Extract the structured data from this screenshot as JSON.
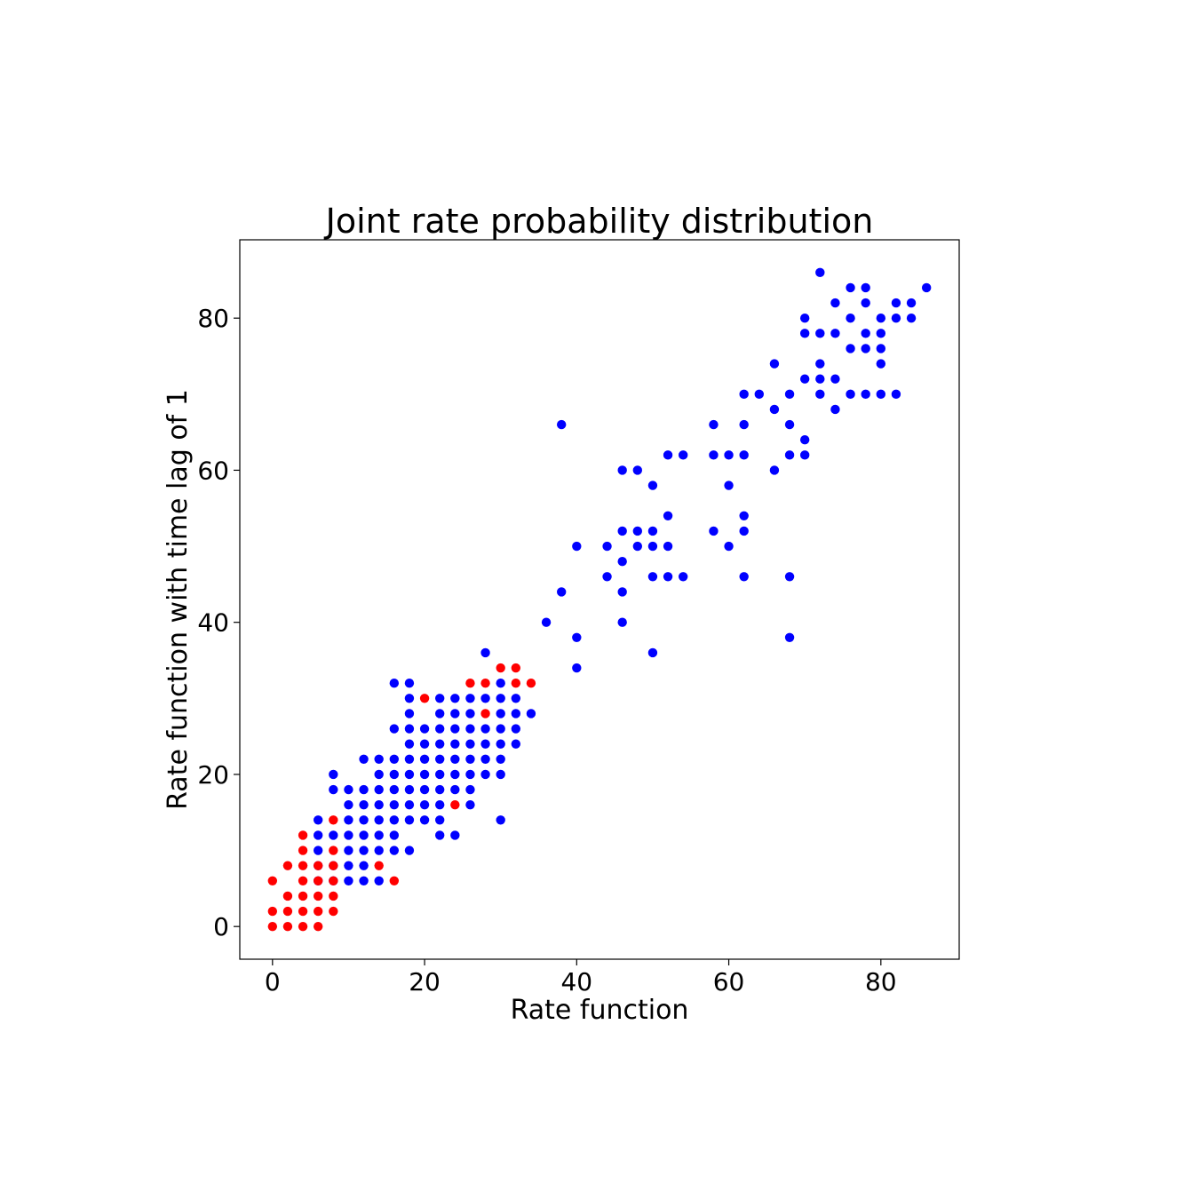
{
  "chart_data": {
    "type": "scatter",
    "title": "Joint rate probability distribution",
    "xlabel": "Rate function",
    "ylabel": "Rate function with time lag of 1",
    "xlim": [
      -4.3,
      90.3
    ],
    "ylim": [
      -4.3,
      90.3
    ],
    "xticks": [
      0,
      20,
      40,
      60,
      80
    ],
    "yticks": [
      0,
      20,
      40,
      60,
      80
    ],
    "grid": false,
    "series": [
      {
        "color": "#0000ff",
        "points": [
          [
            6,
            14
          ],
          [
            6,
            12
          ],
          [
            6,
            10
          ],
          [
            6,
            8
          ],
          [
            6,
            6
          ],
          [
            8,
            20
          ],
          [
            8,
            18
          ],
          [
            8,
            12
          ],
          [
            8,
            8
          ],
          [
            8,
            6
          ],
          [
            10,
            18
          ],
          [
            10,
            16
          ],
          [
            10,
            14
          ],
          [
            10,
            12
          ],
          [
            10,
            10
          ],
          [
            10,
            8
          ],
          [
            10,
            6
          ],
          [
            12,
            22
          ],
          [
            12,
            18
          ],
          [
            12,
            16
          ],
          [
            12,
            14
          ],
          [
            12,
            12
          ],
          [
            12,
            10
          ],
          [
            12,
            8
          ],
          [
            12,
            6
          ],
          [
            14,
            22
          ],
          [
            14,
            20
          ],
          [
            14,
            18
          ],
          [
            14,
            16
          ],
          [
            14,
            14
          ],
          [
            14,
            12
          ],
          [
            14,
            10
          ],
          [
            14,
            6
          ],
          [
            16,
            32
          ],
          [
            16,
            26
          ],
          [
            16,
            22
          ],
          [
            16,
            20
          ],
          [
            16,
            18
          ],
          [
            16,
            16
          ],
          [
            16,
            14
          ],
          [
            16,
            12
          ],
          [
            16,
            10
          ],
          [
            18,
            32
          ],
          [
            18,
            30
          ],
          [
            18,
            28
          ],
          [
            18,
            26
          ],
          [
            18,
            24
          ],
          [
            18,
            22
          ],
          [
            18,
            20
          ],
          [
            18,
            18
          ],
          [
            18,
            16
          ],
          [
            18,
            14
          ],
          [
            18,
            10
          ],
          [
            20,
            26
          ],
          [
            20,
            24
          ],
          [
            20,
            22
          ],
          [
            20,
            20
          ],
          [
            20,
            18
          ],
          [
            20,
            16
          ],
          [
            20,
            14
          ],
          [
            22,
            30
          ],
          [
            22,
            28
          ],
          [
            22,
            26
          ],
          [
            22,
            24
          ],
          [
            22,
            22
          ],
          [
            22,
            20
          ],
          [
            22,
            18
          ],
          [
            22,
            16
          ],
          [
            22,
            14
          ],
          [
            22,
            12
          ],
          [
            24,
            30
          ],
          [
            24,
            28
          ],
          [
            24,
            26
          ],
          [
            24,
            24
          ],
          [
            24,
            22
          ],
          [
            24,
            20
          ],
          [
            24,
            18
          ],
          [
            24,
            12
          ],
          [
            26,
            30
          ],
          [
            26,
            28
          ],
          [
            26,
            26
          ],
          [
            26,
            24
          ],
          [
            26,
            22
          ],
          [
            26,
            20
          ],
          [
            26,
            18
          ],
          [
            26,
            16
          ],
          [
            28,
            36
          ],
          [
            28,
            30
          ],
          [
            28,
            26
          ],
          [
            28,
            24
          ],
          [
            28,
            22
          ],
          [
            28,
            20
          ],
          [
            30,
            32
          ],
          [
            30,
            30
          ],
          [
            30,
            28
          ],
          [
            30,
            26
          ],
          [
            30,
            24
          ],
          [
            30,
            22
          ],
          [
            30,
            20
          ],
          [
            30,
            14
          ],
          [
            32,
            30
          ],
          [
            32,
            28
          ],
          [
            32,
            26
          ],
          [
            32,
            24
          ],
          [
            34,
            28
          ],
          [
            36,
            40
          ],
          [
            38,
            66
          ],
          [
            38,
            44
          ],
          [
            40,
            50
          ],
          [
            40,
            38
          ],
          [
            40,
            34
          ],
          [
            44,
            50
          ],
          [
            44,
            46
          ],
          [
            46,
            60
          ],
          [
            46,
            52
          ],
          [
            46,
            48
          ],
          [
            46,
            44
          ],
          [
            46,
            40
          ],
          [
            48,
            60
          ],
          [
            48,
            52
          ],
          [
            48,
            50
          ],
          [
            50,
            58
          ],
          [
            50,
            52
          ],
          [
            50,
            50
          ],
          [
            50,
            46
          ],
          [
            50,
            36
          ],
          [
            52,
            62
          ],
          [
            52,
            54
          ],
          [
            52,
            50
          ],
          [
            52,
            46
          ],
          [
            54,
            62
          ],
          [
            54,
            46
          ],
          [
            58,
            66
          ],
          [
            58,
            62
          ],
          [
            58,
            52
          ],
          [
            60,
            62
          ],
          [
            60,
            58
          ],
          [
            60,
            50
          ],
          [
            62,
            70
          ],
          [
            62,
            66
          ],
          [
            62,
            62
          ],
          [
            62,
            54
          ],
          [
            62,
            52
          ],
          [
            62,
            46
          ],
          [
            64,
            70
          ],
          [
            66,
            74
          ],
          [
            66,
            68
          ],
          [
            66,
            60
          ],
          [
            68,
            70
          ],
          [
            68,
            66
          ],
          [
            68,
            62
          ],
          [
            68,
            46
          ],
          [
            68,
            38
          ],
          [
            70,
            80
          ],
          [
            70,
            78
          ],
          [
            70,
            72
          ],
          [
            70,
            64
          ],
          [
            70,
            62
          ],
          [
            72,
            86
          ],
          [
            72,
            78
          ],
          [
            72,
            74
          ],
          [
            72,
            72
          ],
          [
            72,
            70
          ],
          [
            74,
            82
          ],
          [
            74,
            78
          ],
          [
            74,
            72
          ],
          [
            74,
            68
          ],
          [
            76,
            84
          ],
          [
            76,
            80
          ],
          [
            76,
            76
          ],
          [
            76,
            70
          ],
          [
            78,
            84
          ],
          [
            78,
            82
          ],
          [
            78,
            78
          ],
          [
            78,
            76
          ],
          [
            78,
            70
          ],
          [
            80,
            80
          ],
          [
            80,
            78
          ],
          [
            80,
            76
          ],
          [
            80,
            74
          ],
          [
            80,
            70
          ],
          [
            82,
            82
          ],
          [
            82,
            80
          ],
          [
            82,
            70
          ],
          [
            84,
            82
          ],
          [
            84,
            80
          ],
          [
            86,
            84
          ]
        ]
      },
      {
        "color": "#ff0000",
        "points": [
          [
            0,
            6
          ],
          [
            0,
            2
          ],
          [
            0,
            0
          ],
          [
            2,
            8
          ],
          [
            2,
            4
          ],
          [
            2,
            2
          ],
          [
            2,
            0
          ],
          [
            4,
            12
          ],
          [
            4,
            10
          ],
          [
            4,
            8
          ],
          [
            4,
            6
          ],
          [
            4,
            4
          ],
          [
            4,
            2
          ],
          [
            4,
            0
          ],
          [
            6,
            8
          ],
          [
            6,
            6
          ],
          [
            6,
            4
          ],
          [
            6,
            2
          ],
          [
            6,
            0
          ],
          [
            8,
            14
          ],
          [
            8,
            10
          ],
          [
            8,
            8
          ],
          [
            8,
            6
          ],
          [
            8,
            4
          ],
          [
            8,
            2
          ],
          [
            14,
            8
          ],
          [
            16,
            6
          ],
          [
            20,
            30
          ],
          [
            24,
            16
          ],
          [
            26,
            32
          ],
          [
            28,
            32
          ],
          [
            28,
            28
          ],
          [
            30,
            34
          ],
          [
            32,
            34
          ],
          [
            32,
            32
          ],
          [
            34,
            32
          ]
        ]
      }
    ]
  }
}
